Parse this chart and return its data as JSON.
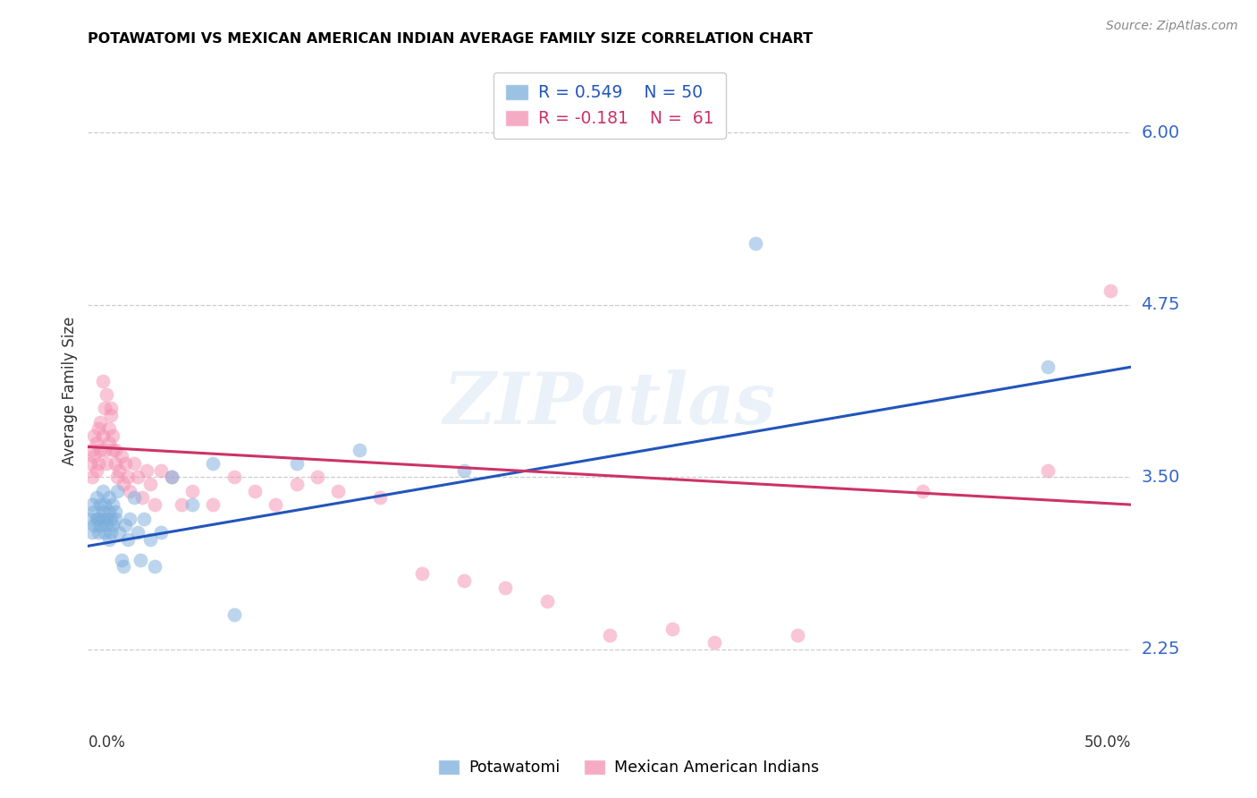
{
  "title": "POTAWATOMI VS MEXICAN AMERICAN INDIAN AVERAGE FAMILY SIZE CORRELATION CHART",
  "source": "Source: ZipAtlas.com",
  "ylabel": "Average Family Size",
  "yticks": [
    2.25,
    3.5,
    4.75,
    6.0
  ],
  "xmin": 0.0,
  "xmax": 0.5,
  "ymin": 1.75,
  "ymax": 6.5,
  "watermark": "ZIPatlas",
  "potawatomi_label": "Potawatomi",
  "mexican_label": "Mexican American Indians",
  "blue_color": "#7aaddc",
  "pink_color": "#f48fb1",
  "blue_line_color": "#2255bb",
  "pink_line_color": "#cc3366",
  "blue_scatter_alpha": 0.5,
  "pink_scatter_alpha": 0.5,
  "marker_size": 130,
  "potawatomi_x": [
    0.001,
    0.002,
    0.002,
    0.003,
    0.003,
    0.004,
    0.004,
    0.005,
    0.005,
    0.006,
    0.006,
    0.007,
    0.007,
    0.007,
    0.008,
    0.008,
    0.009,
    0.009,
    0.01,
    0.01,
    0.01,
    0.011,
    0.011,
    0.012,
    0.012,
    0.013,
    0.013,
    0.014,
    0.015,
    0.016,
    0.017,
    0.018,
    0.019,
    0.02,
    0.022,
    0.024,
    0.025,
    0.027,
    0.03,
    0.032,
    0.035,
    0.04,
    0.05,
    0.06,
    0.07,
    0.1,
    0.13,
    0.18,
    0.32,
    0.46
  ],
  "potawatomi_y": [
    3.2,
    3.1,
    3.3,
    3.15,
    3.25,
    3.2,
    3.35,
    3.1,
    3.2,
    3.3,
    3.15,
    3.4,
    3.2,
    3.25,
    3.1,
    3.3,
    3.2,
    3.15,
    3.25,
    3.05,
    3.35,
    3.2,
    3.1,
    3.3,
    3.15,
    3.25,
    3.2,
    3.4,
    3.1,
    2.9,
    2.85,
    3.15,
    3.05,
    3.2,
    3.35,
    3.1,
    2.9,
    3.2,
    3.05,
    2.85,
    3.1,
    3.5,
    3.3,
    3.6,
    2.5,
    3.6,
    3.7,
    3.55,
    5.2,
    4.3
  ],
  "mexican_x": [
    0.001,
    0.002,
    0.002,
    0.003,
    0.003,
    0.004,
    0.004,
    0.005,
    0.005,
    0.006,
    0.006,
    0.007,
    0.007,
    0.008,
    0.008,
    0.009,
    0.009,
    0.01,
    0.01,
    0.011,
    0.011,
    0.012,
    0.012,
    0.013,
    0.013,
    0.014,
    0.015,
    0.016,
    0.017,
    0.018,
    0.019,
    0.02,
    0.022,
    0.024,
    0.026,
    0.028,
    0.03,
    0.032,
    0.035,
    0.04,
    0.045,
    0.05,
    0.06,
    0.07,
    0.08,
    0.09,
    0.1,
    0.11,
    0.12,
    0.14,
    0.16,
    0.18,
    0.2,
    0.22,
    0.25,
    0.28,
    0.3,
    0.34,
    0.4,
    0.46,
    0.49
  ],
  "mexican_y": [
    3.6,
    3.5,
    3.7,
    3.8,
    3.65,
    3.55,
    3.75,
    3.85,
    3.6,
    3.7,
    3.9,
    4.2,
    3.8,
    4.0,
    3.7,
    4.1,
    3.6,
    3.75,
    3.85,
    3.95,
    4.0,
    3.7,
    3.8,
    3.6,
    3.7,
    3.5,
    3.55,
    3.65,
    3.45,
    3.6,
    3.5,
    3.4,
    3.6,
    3.5,
    3.35,
    3.55,
    3.45,
    3.3,
    3.55,
    3.5,
    3.3,
    3.4,
    3.3,
    3.5,
    3.4,
    3.3,
    3.45,
    3.5,
    3.4,
    3.35,
    2.8,
    2.75,
    2.7,
    2.6,
    2.35,
    2.4,
    2.3,
    2.35,
    3.4,
    3.55,
    4.85
  ],
  "blue_trendline_x": [
    0.0,
    0.5
  ],
  "blue_trendline_y": [
    3.0,
    4.3
  ],
  "pink_trendline_x": [
    0.0,
    0.5
  ],
  "pink_trendline_y": [
    3.72,
    3.3
  ]
}
